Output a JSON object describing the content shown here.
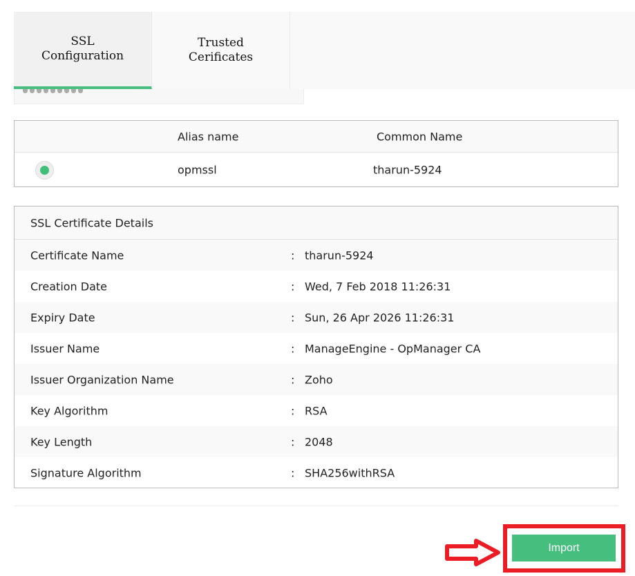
{
  "tabs": [
    {
      "label": "SSL Configuration",
      "active": true
    },
    {
      "label": "Trusted Cerificates",
      "active": false
    }
  ],
  "certs_table": {
    "headers": [
      "Alias name",
      "Common Name"
    ],
    "rows": [
      {
        "selected": true,
        "alias": "opmssl",
        "common_name": "tharun-5924"
      }
    ]
  },
  "details": {
    "title": "SSL Certificate Details",
    "separator": ":",
    "rows": [
      {
        "label": "Certificate Name",
        "value": "tharun-5924"
      },
      {
        "label": "Creation Date",
        "value": "Wed, 7 Feb 2018 11:26:31"
      },
      {
        "label": "Expiry Date",
        "value": "Sun, 26 Apr 2026 11:26:31"
      },
      {
        "label": "Issuer Name",
        "value": "ManageEngine - OpManager CA"
      },
      {
        "label": "Issuer Organization Name",
        "value": "Zoho"
      },
      {
        "label": "Key Algorithm",
        "value": "RSA"
      },
      {
        "label": "Key Length",
        "value": "2048"
      },
      {
        "label": "Signature Algorithm",
        "value": "SHA256withRSA"
      }
    ]
  },
  "import_label": "Import",
  "colors": {
    "accent": "#45be7e",
    "highlight": "#ec1c24"
  }
}
